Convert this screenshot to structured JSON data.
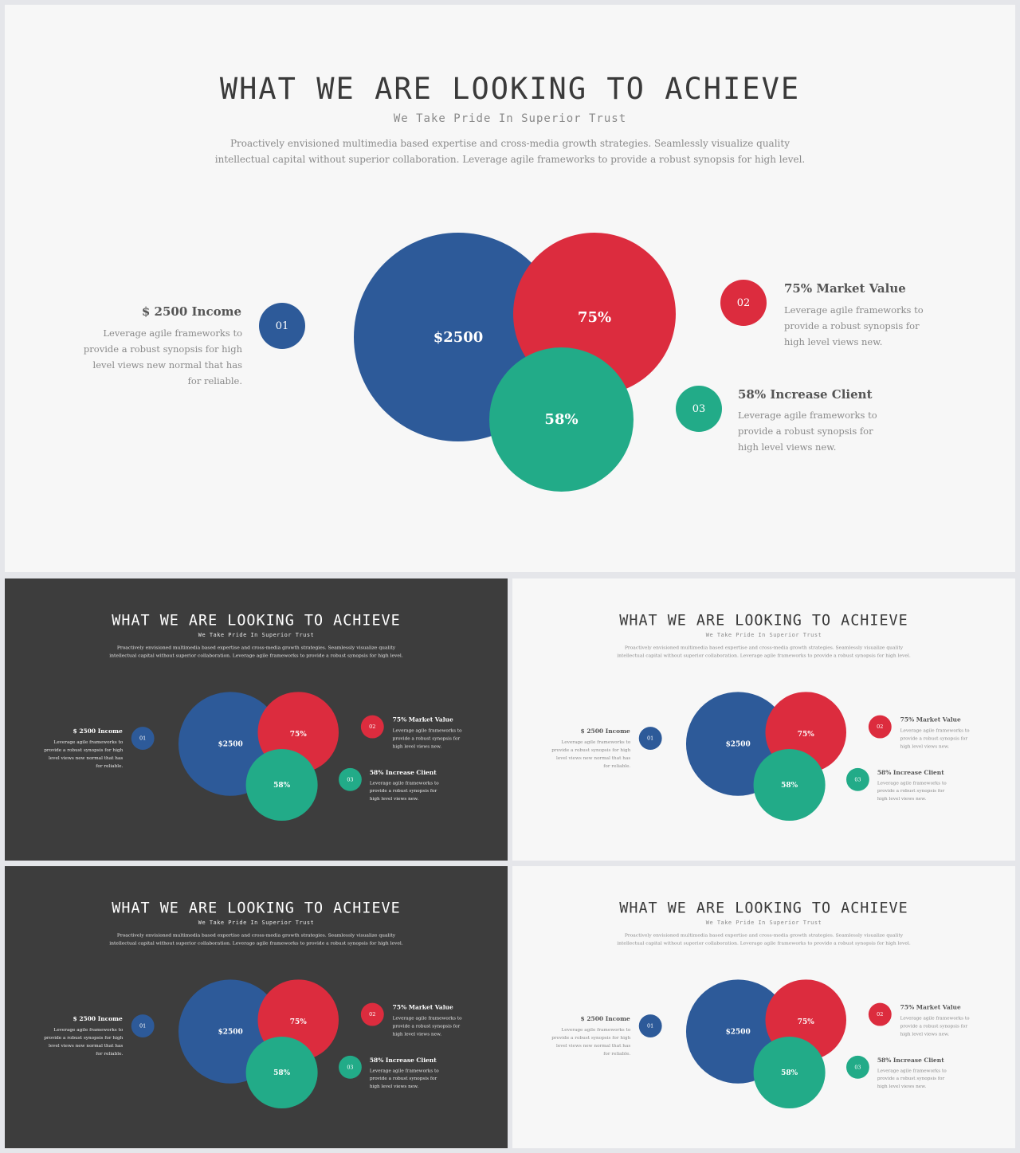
{
  "title": "WHAT WE ARE LOOKING TO ACHIEVE",
  "subtitle": "We Take Pride In Superior Trust",
  "description": "Proactively envisioned multimedia based expertise and cross-media growth strategies. Seamlessly visualize quality intellectual capital without superior collaboration. Leverage agile frameworks to provide a robust synopsis for high level.",
  "circles": {
    "income": "$2500",
    "market": "75%",
    "client": "58%"
  },
  "items": [
    {
      "number": "01",
      "heading": "$ 2500 Income",
      "text": "Leverage agile frameworks to provide a robust synopsis for high level views new normal that has for reliable."
    },
    {
      "number": "02",
      "heading": "75% Market Value",
      "text": "Leverage agile frameworks to provide a robust synopsis for high level views new."
    },
    {
      "number": "03",
      "heading": "58% Increase Client",
      "text": "Leverage agile frameworks to provide a robust synopsis for high level views new."
    }
  ],
  "colors": {
    "blue": "#2d5a99",
    "red": "#dc2c3e",
    "green": "#22ab88",
    "light_bg": "#f7f7f7",
    "dark_bg": "#3d3d3d"
  },
  "slides": [
    {
      "theme": "light"
    },
    {
      "theme": "dark"
    },
    {
      "theme": "light"
    },
    {
      "theme": "dark"
    },
    {
      "theme": "light"
    }
  ]
}
